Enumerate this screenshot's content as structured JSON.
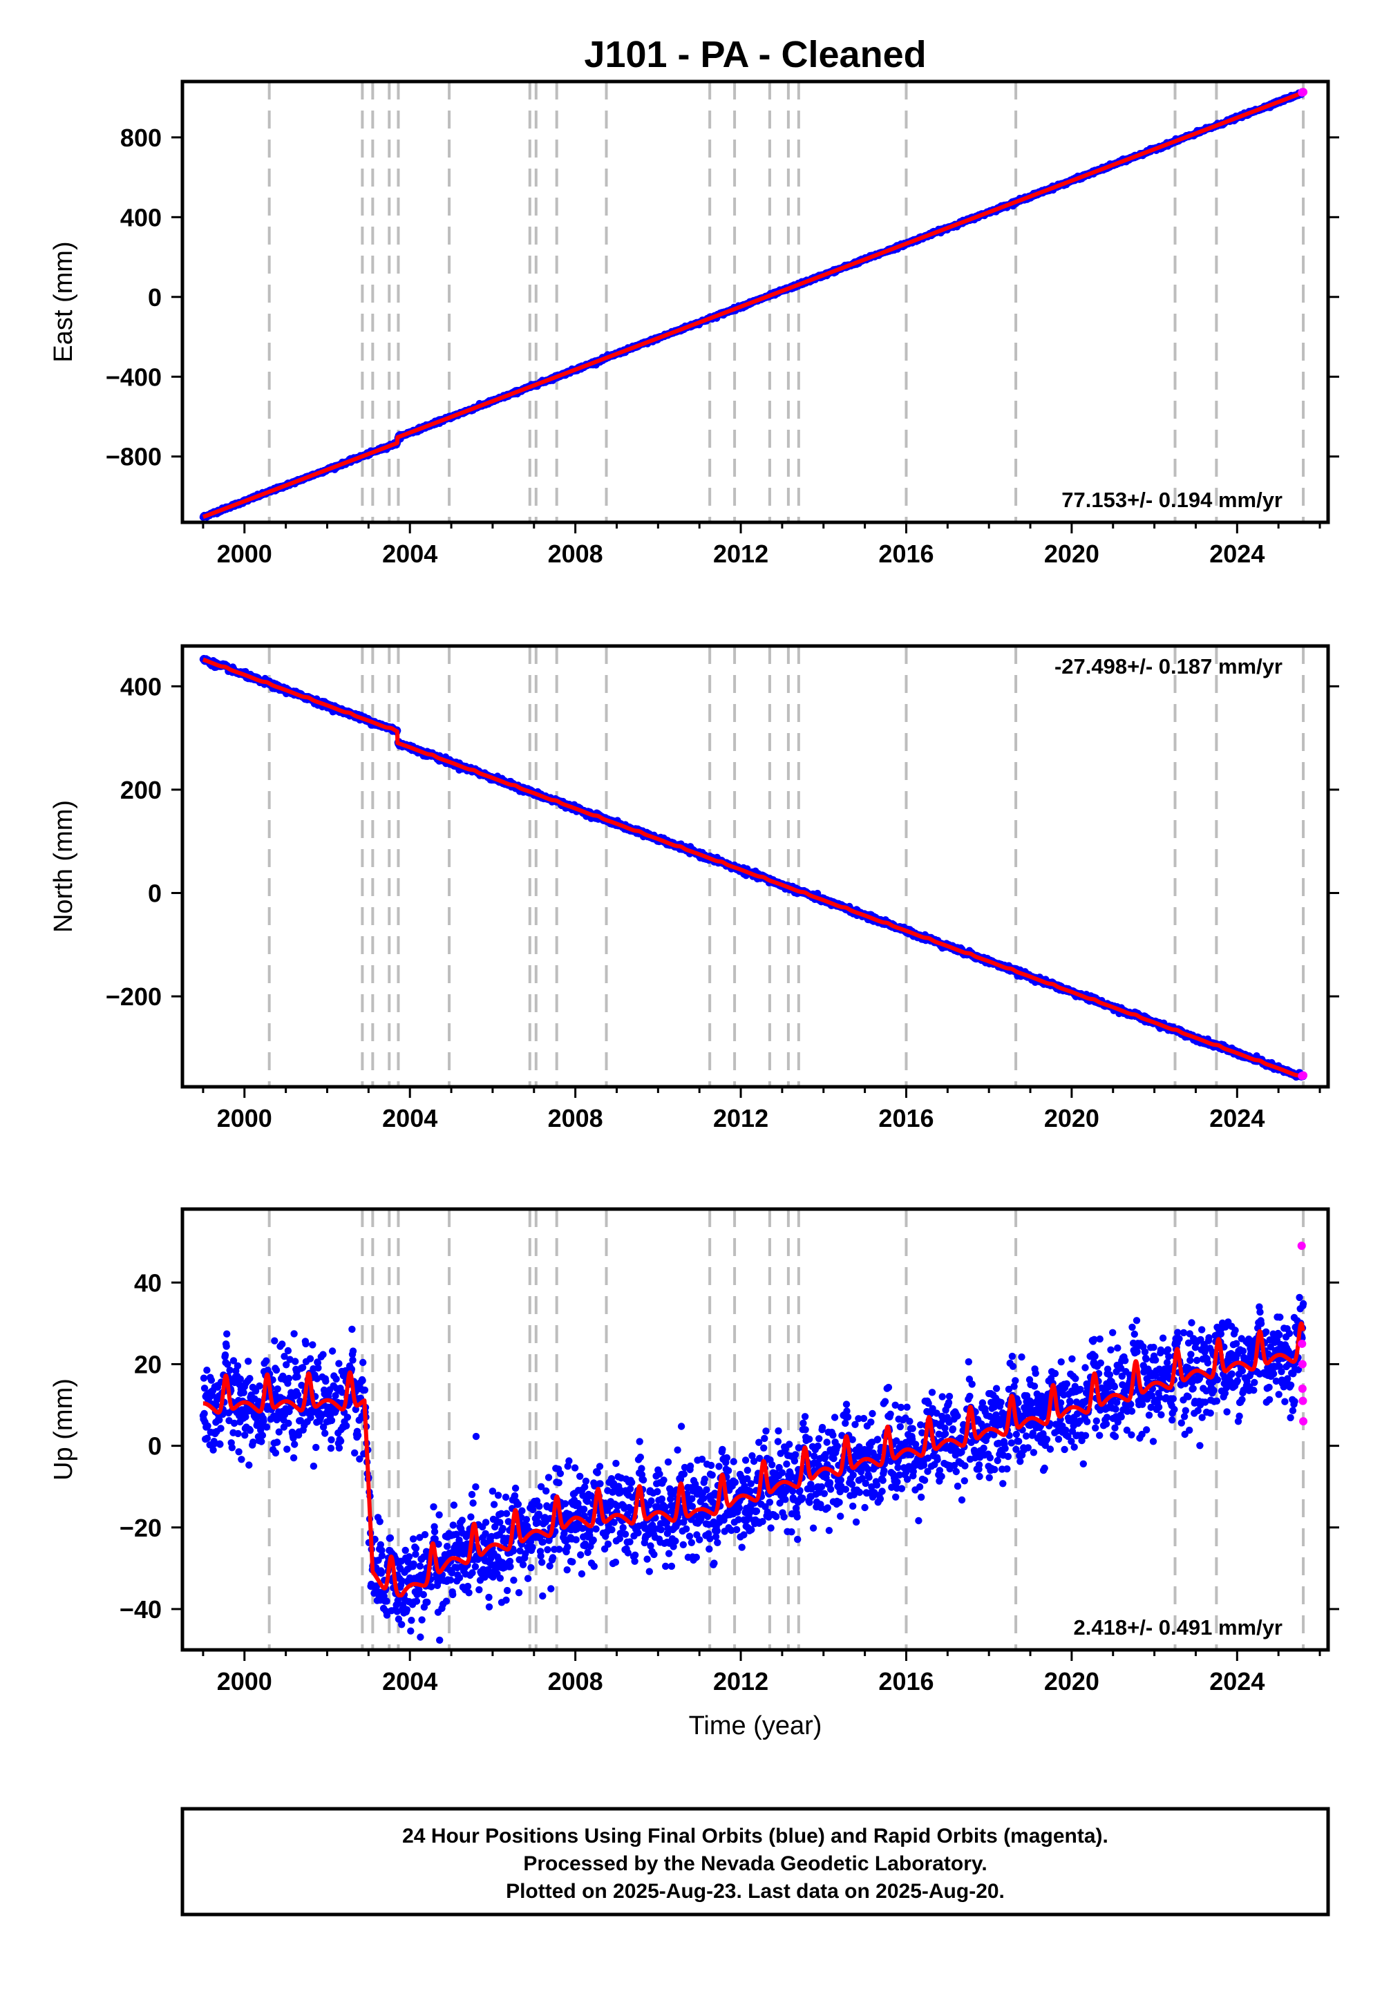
{
  "title": "J101  - PA - Cleaned",
  "colors": {
    "final": "#0000ff",
    "rapid": "#ff00ff",
    "model": "#ff0000",
    "event": "#bdbdbd"
  },
  "chart_data": [
    {
      "type": "scatter",
      "name": "east",
      "ylabel": "East (mm)",
      "xlim": [
        1998.5,
        2026.2
      ],
      "ylim": [
        -1130,
        1080
      ],
      "xticks": [
        2000,
        2004,
        2008,
        2012,
        2016,
        2020,
        2024
      ],
      "yticks": [
        800,
        400,
        0,
        -400,
        -800
      ],
      "ytick_labels": [
        "800",
        "400",
        "0",
        "−400",
        "−800"
      ],
      "rate_label": "77.153+/- 0.194 mm/yr",
      "rate_position": "bottom-right",
      "start": 1999.0,
      "end": 2025.6,
      "y_at_start": -1103,
      "y_at_end": 1025,
      "noise": 4,
      "offsets": [
        {
          "t": 2003.7,
          "dy": 28
        }
      ],
      "seasonal": {
        "amplitude": 0
      },
      "rapid_points": [
        {
          "x": 2025.57,
          "y": 1025
        },
        {
          "x": 2025.6,
          "y": 1027
        }
      ]
    },
    {
      "type": "scatter",
      "name": "north",
      "ylabel": "North (mm)",
      "xlim": [
        1998.5,
        2026.2
      ],
      "ylim": [
        -375,
        478
      ],
      "xticks": [
        2000,
        2004,
        2008,
        2012,
        2016,
        2020,
        2024
      ],
      "yticks": [
        400,
        200,
        0,
        -200
      ],
      "ytick_labels": [
        "400",
        "200",
        "0",
        "−200"
      ],
      "rate_label": "-27.498+/- 0.187 mm/yr",
      "rate_position": "top-right",
      "start": 1999.0,
      "end": 2025.6,
      "y_at_start": 452,
      "y_at_end": -357,
      "noise": 2.5,
      "offsets": [
        {
          "t": 2003.7,
          "dy": -22
        }
      ],
      "seasonal": {
        "amplitude": 1.5
      },
      "rapid_points": [
        {
          "x": 2025.57,
          "y": -354
        },
        {
          "x": 2025.6,
          "y": -353
        }
      ]
    },
    {
      "type": "scatter",
      "name": "up",
      "ylabel": "Up (mm)",
      "xlabel": "Time (year)",
      "xlim": [
        1998.5,
        2026.2
      ],
      "ylim": [
        -50,
        58
      ],
      "xticks": [
        2000,
        2004,
        2008,
        2012,
        2016,
        2020,
        2024
      ],
      "yticks": [
        40,
        20,
        0,
        -20,
        -40
      ],
      "ytick_labels": [
        "40",
        "20",
        "0",
        "−20",
        "−40"
      ],
      "rate_label": "2.418+/- 0.491 mm/yr",
      "rate_position": "bottom-right",
      "start": 1999.0,
      "end": 2025.6,
      "model_knots": [
        [
          1999.0,
          11
        ],
        [
          2002.9,
          12
        ],
        [
          2003.1,
          -30
        ],
        [
          2003.8,
          -35
        ],
        [
          2005.0,
          -27
        ],
        [
          2008.0,
          -17
        ],
        [
          2011.0,
          -15
        ],
        [
          2014.0,
          -5
        ],
        [
          2017.0,
          2
        ],
        [
          2020.0,
          10
        ],
        [
          2023.0,
          19
        ],
        [
          2025.6,
          24
        ]
      ],
      "noise": 5.5,
      "seasonal": {
        "amplitude": 6
      },
      "rapid_points": [
        {
          "x": 2025.56,
          "y": 49
        },
        {
          "x": 2025.57,
          "y": 25
        },
        {
          "x": 2025.58,
          "y": 20
        },
        {
          "x": 2025.58,
          "y": 14
        },
        {
          "x": 2025.59,
          "y": 11
        },
        {
          "x": 2025.6,
          "y": 6
        }
      ]
    }
  ],
  "event_years": [
    2000.6,
    2002.85,
    2003.1,
    2003.5,
    2003.72,
    2004.95,
    2006.9,
    2007.05,
    2007.55,
    2008.75,
    2011.25,
    2011.85,
    2012.7,
    2013.15,
    2013.4,
    2016.0,
    2018.65,
    2022.5,
    2023.5,
    2025.6
  ],
  "footer": {
    "line1": "24 Hour Positions Using Final Orbits (blue) and Rapid Orbits (magenta).",
    "line2": "Processed by the Nevada Geodetic Laboratory.",
    "line3": "Plotted on 2025-Aug-23. Last data on 2025-Aug-20."
  }
}
